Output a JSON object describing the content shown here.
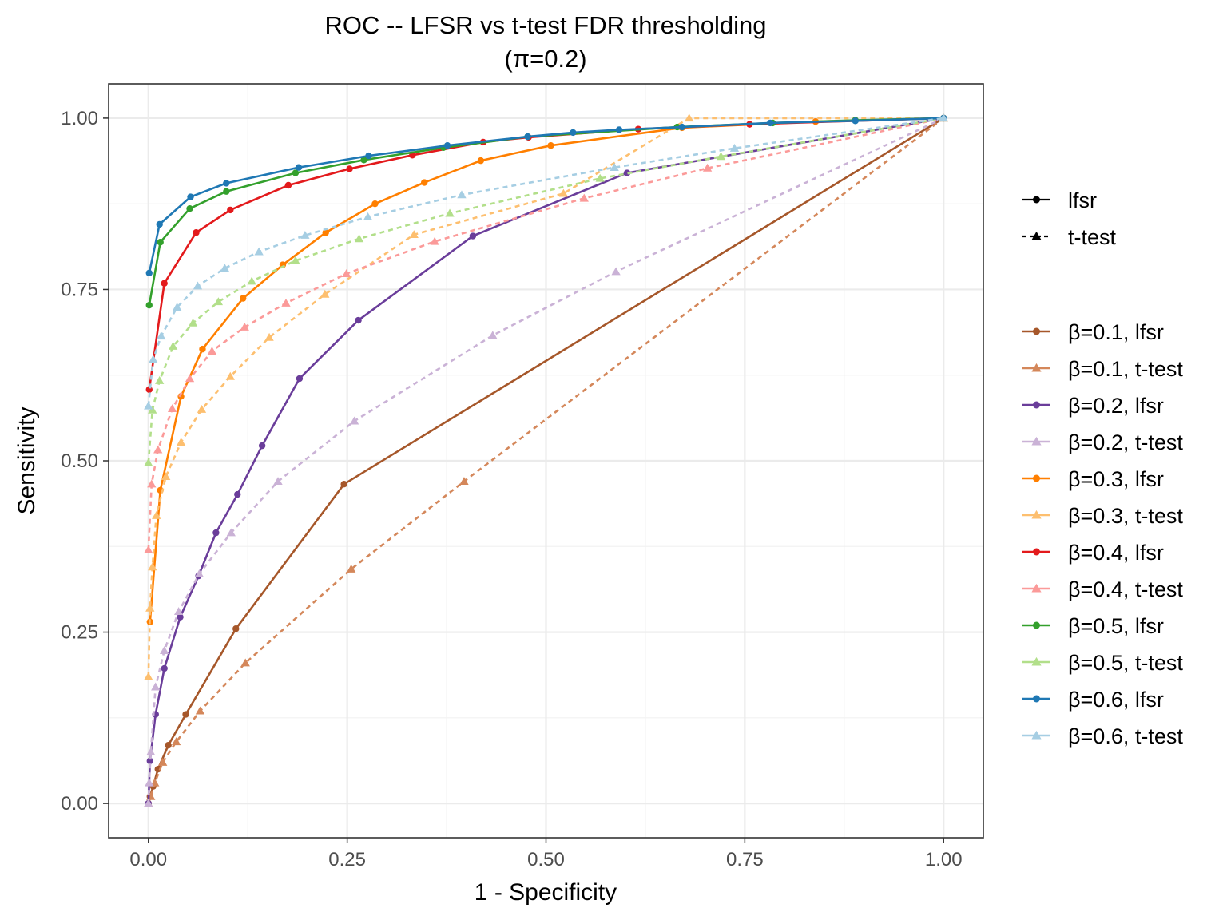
{
  "chart_data": {
    "type": "line",
    "title": "ROC -- LFSR vs t-test FDR thresholding",
    "subtitle": "(π=0.2)",
    "xlabel": "1 - Specificity",
    "ylabel": "Sensitivity",
    "xlim": [
      -0.05,
      1.05
    ],
    "ylim": [
      -0.05,
      1.05
    ],
    "x_ticks": [
      "0.00",
      "0.25",
      "0.50",
      "0.75",
      "1.00"
    ],
    "y_ticks": [
      "0.00",
      "0.25",
      "0.50",
      "0.75",
      "1.00"
    ],
    "grid": true,
    "legend_placement": "right",
    "method_legend": [
      {
        "label": "lfsr",
        "marker": "circle",
        "dash": "solid"
      },
      {
        "label": "t-test",
        "marker": "triangle",
        "dash": "dashed"
      }
    ],
    "series": [
      {
        "name": "β=0.1, lfsr",
        "color": "#a6572a",
        "marker": "circle",
        "dash": "solid",
        "x": [
          0,
          0.002,
          0.006,
          0.012,
          0.025,
          0.047,
          0.11,
          0.246,
          1.0
        ],
        "y": [
          0,
          0.01,
          0.025,
          0.05,
          0.085,
          0.13,
          0.255,
          0.466,
          1.0
        ]
      },
      {
        "name": "β=0.1, t-test",
        "color": "#d4875a",
        "marker": "triangle",
        "dash": "dashed",
        "x": [
          0,
          0.003,
          0.008,
          0.018,
          0.035,
          0.065,
          0.122,
          0.255,
          0.397,
          1.0
        ],
        "y": [
          0,
          0.01,
          0.03,
          0.06,
          0.09,
          0.135,
          0.205,
          0.342,
          0.47,
          1.0
        ]
      },
      {
        "name": "β=0.2, lfsr",
        "color": "#6a3d9a",
        "marker": "circle",
        "dash": "solid",
        "x": [
          0,
          0.002,
          0.009,
          0.02,
          0.04,
          0.063,
          0.085,
          0.112,
          0.143,
          0.19,
          0.264,
          0.408,
          0.602,
          1.0
        ],
        "y": [
          0,
          0.062,
          0.13,
          0.197,
          0.272,
          0.332,
          0.395,
          0.451,
          0.522,
          0.62,
          0.705,
          0.828,
          0.92,
          1.0
        ]
      },
      {
        "name": "β=0.2, t-test",
        "color": "#cab2d6",
        "marker": "triangle",
        "dash": "dashed",
        "x": [
          0,
          0.001,
          0.003,
          0.009,
          0.02,
          0.038,
          0.064,
          0.104,
          0.163,
          0.259,
          0.433,
          0.588,
          1.0
        ],
        "y": [
          0,
          0.03,
          0.075,
          0.17,
          0.223,
          0.28,
          0.335,
          0.395,
          0.47,
          0.558,
          0.683,
          0.776,
          1.0
        ]
      },
      {
        "name": "β=0.3, lfsr",
        "color": "#ff7f00",
        "marker": "circle",
        "dash": "solid",
        "x": [
          0.002,
          0.015,
          0.041,
          0.068,
          0.119,
          0.169,
          0.223,
          0.285,
          0.347,
          0.418,
          0.506,
          0.671,
          0.839,
          1.0
        ],
        "y": [
          0.265,
          0.457,
          0.594,
          0.663,
          0.737,
          0.786,
          0.833,
          0.875,
          0.906,
          0.938,
          0.96,
          0.986,
          0.995,
          1.0
        ],
        "end_x": 1.0,
        "end_y": 1.0
      },
      {
        "name": "β=0.3, t-test",
        "color": "#fdbf6f",
        "marker": "triangle",
        "dash": "dashed",
        "x": [
          0,
          0.002,
          0.005,
          0.01,
          0.022,
          0.041,
          0.067,
          0.103,
          0.152,
          0.222,
          0.334,
          0.522,
          0.68,
          1.0
        ],
        "y": [
          0.185,
          0.285,
          0.345,
          0.42,
          0.477,
          0.527,
          0.575,
          0.623,
          0.68,
          0.743,
          0.83,
          0.89,
          1.0,
          1.0
        ]
      },
      {
        "name": "β=0.4, lfsr",
        "color": "#e31a1c",
        "marker": "circle",
        "dash": "solid",
        "x": [
          0.001,
          0.02,
          0.06,
          0.103,
          0.176,
          0.253,
          0.332,
          0.421,
          0.478,
          0.616,
          0.756,
          1.0
        ],
        "y": [
          0.604,
          0.759,
          0.833,
          0.866,
          0.902,
          0.926,
          0.946,
          0.965,
          0.972,
          0.984,
          0.991,
          1.0
        ]
      },
      {
        "name": "β=0.4, t-test",
        "color": "#fb9a99",
        "marker": "triangle",
        "dash": "dashed",
        "x": [
          0,
          0.004,
          0.012,
          0.03,
          0.052,
          0.08,
          0.121,
          0.173,
          0.249,
          0.36,
          0.548,
          0.703,
          1.0
        ],
        "y": [
          0.37,
          0.466,
          0.516,
          0.576,
          0.62,
          0.66,
          0.695,
          0.73,
          0.773,
          0.82,
          0.883,
          0.927,
          1.0
        ]
      },
      {
        "name": "β=0.5, lfsr",
        "color": "#33a02c",
        "marker": "circle",
        "dash": "solid",
        "x": [
          0.001,
          0.015,
          0.052,
          0.098,
          0.185,
          0.271,
          0.371,
          0.477,
          0.665,
          0.785,
          0.889,
          1.0
        ],
        "y": [
          0.727,
          0.819,
          0.868,
          0.893,
          0.92,
          0.939,
          0.957,
          0.973,
          0.987,
          0.993,
          0.997,
          1.0
        ]
      },
      {
        "name": "β=0.5, t-test",
        "color": "#b2df8a",
        "marker": "triangle",
        "dash": "dashed",
        "x": [
          0,
          0.005,
          0.014,
          0.031,
          0.056,
          0.088,
          0.13,
          0.185,
          0.265,
          0.379,
          0.568,
          0.72,
          1.0
        ],
        "y": [
          0.497,
          0.574,
          0.617,
          0.667,
          0.701,
          0.732,
          0.762,
          0.792,
          0.824,
          0.861,
          0.912,
          0.944,
          1.0
        ]
      },
      {
        "name": "β=0.6, lfsr",
        "color": "#1f78b4",
        "marker": "circle",
        "dash": "solid",
        "x": [
          0.001,
          0.014,
          0.053,
          0.098,
          0.189,
          0.277,
          0.376,
          0.477,
          0.534,
          0.592,
          0.671,
          0.782,
          0.889,
          1.0
        ],
        "y": [
          0.774,
          0.845,
          0.885,
          0.905,
          0.928,
          0.945,
          0.96,
          0.973,
          0.979,
          0.983,
          0.987,
          0.993,
          0.996,
          1.0
        ]
      },
      {
        "name": "β=0.6, t-test",
        "color": "#a6cee3",
        "marker": "triangle",
        "dash": "dashed",
        "x": [
          0,
          0.006,
          0.016,
          0.036,
          0.062,
          0.096,
          0.139,
          0.197,
          0.276,
          0.394,
          0.586,
          0.737,
          1.0
        ],
        "y": [
          0.58,
          0.648,
          0.682,
          0.724,
          0.755,
          0.781,
          0.805,
          0.829,
          0.856,
          0.888,
          0.928,
          0.956,
          1.0
        ]
      }
    ]
  }
}
